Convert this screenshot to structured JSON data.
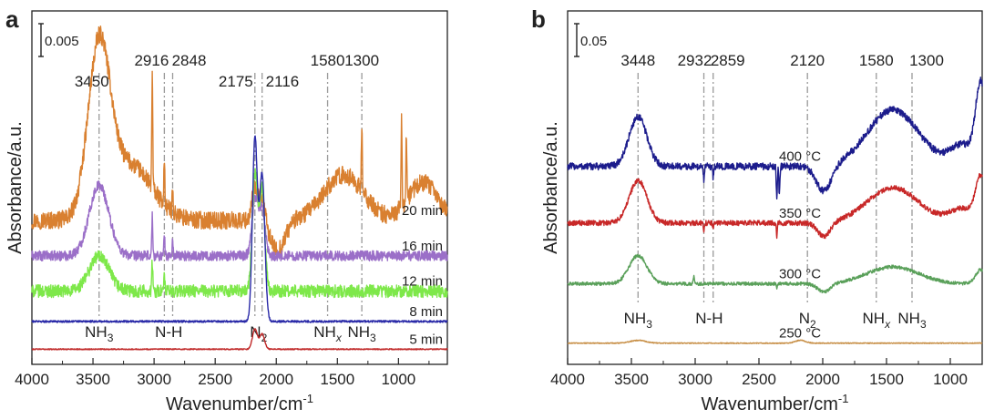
{
  "chart_data": [
    {
      "panel": "a",
      "type": "line",
      "xlabel": "Wavenumber/cm",
      "xlabel_sup": "-1",
      "ylabel": "Absorbance/a.u.",
      "xlim": [
        4000,
        600
      ],
      "xticks": [
        4000,
        3500,
        3000,
        2500,
        2000,
        1500,
        1000
      ],
      "scale_bar": "0.005",
      "peak_labels": [
        {
          "text": "3450",
          "x": 3450
        },
        {
          "text": "2916",
          "x": 2916
        },
        {
          "text": "2848",
          "x": 2848
        },
        {
          "text": "2175",
          "x": 2175
        },
        {
          "text": "2116",
          "x": 2116
        },
        {
          "text": "1580",
          "x": 1580
        },
        {
          "text": "1300",
          "x": 1300
        }
      ],
      "bottom_labels": [
        {
          "main": "NH",
          "sub": "3",
          "x": 3450
        },
        {
          "main": "N-H",
          "sub": "",
          "x": 2880
        },
        {
          "main": "N",
          "sub": "2",
          "x": 2145
        },
        {
          "main": "NH",
          "sub": "x",
          "x": 1580
        },
        {
          "main": "NH",
          "sub": "3",
          "x": 1300
        }
      ],
      "series": [
        {
          "name": "20 min",
          "color": "#d98030",
          "baseline": 0.0052,
          "noise": 0.00035,
          "peaks": [
            [
              3450,
              0.0065,
              90
            ],
            [
              3200,
              0.0022,
              180
            ],
            [
              2175,
              0.0012,
              25
            ],
            [
              2116,
              0.0009,
              25
            ],
            [
              1450,
              0.0018,
              160
            ],
            [
              800,
              0.0015,
              120
            ]
          ],
          "spikes": [
            [
              3015,
              0.0045
            ],
            [
              2916,
              0.0018
            ],
            [
              2848,
              0.0012
            ],
            [
              1300,
              0.0025
            ],
            [
              975,
              0.0035
            ],
            [
              935,
              0.0026
            ]
          ],
          "dips": [
            [
              1990,
              0.0012,
              60
            ]
          ]
        },
        {
          "name": "16 min",
          "color": "#9b6fc8",
          "baseline": 0.0038,
          "noise": 0.0002,
          "peaks": [
            [
              3450,
              0.0028,
              80
            ],
            [
              2175,
              0.0022,
              25
            ],
            [
              2116,
              0.0018,
              25
            ]
          ],
          "spikes": [
            [
              3015,
              0.0016
            ],
            [
              2916,
              0.0008
            ],
            [
              2848,
              0.0006
            ]
          ],
          "dips": []
        },
        {
          "name": "12 min",
          "color": "#7ee84a",
          "baseline": 0.0024,
          "noise": 0.00025,
          "peaks": [
            [
              3450,
              0.0014,
              80
            ],
            [
              2175,
              0.0045,
              22
            ],
            [
              2116,
              0.004,
              22
            ]
          ],
          "spikes": [
            [
              3015,
              0.0012
            ],
            [
              2916,
              0.0006
            ]
          ],
          "dips": []
        },
        {
          "name": "8 min",
          "color": "#2a2aa8",
          "baseline": 0.0012,
          "noise": 4e-05,
          "peaks": [
            [
              2175,
              0.0072,
              20
            ],
            [
              2116,
              0.0058,
              22
            ]
          ],
          "spikes": [],
          "dips": []
        },
        {
          "name": "5 min",
          "color": "#c02828",
          "baseline": 0.0001,
          "noise": 2e-05,
          "peaks": [
            [
              2175,
              0.0008,
              20
            ],
            [
              2116,
              0.0006,
              20
            ]
          ],
          "spikes": [],
          "dips": []
        }
      ]
    },
    {
      "panel": "b",
      "type": "line",
      "xlabel": "Wavenumber/cm",
      "xlabel_sup": "-1",
      "ylabel": "Absorbance/a.u.",
      "xlim": [
        4000,
        750
      ],
      "xticks": [
        4000,
        3500,
        3000,
        2500,
        2000,
        1500,
        1000
      ],
      "scale_bar": "0.05",
      "peak_labels": [
        {
          "text": "3448",
          "x": 3448
        },
        {
          "text": "2932",
          "x": 2932
        },
        {
          "text": "2859",
          "x": 2859
        },
        {
          "text": "2120",
          "x": 2120
        },
        {
          "text": "1580",
          "x": 1580
        },
        {
          "text": "1300",
          "x": 1300
        }
      ],
      "bottom_labels": [
        {
          "main": "NH",
          "sub": "3",
          "x": 3448
        },
        {
          "main": "N-H",
          "sub": "",
          "x": 2890
        },
        {
          "main": "N",
          "sub": "2",
          "x": 2120
        },
        {
          "main": "NH",
          "sub": "x",
          "x": 1580
        },
        {
          "main": "NH",
          "sub": "3",
          "x": 1300
        }
      ],
      "series": [
        {
          "name": "400 °C",
          "color": "#1c1c8c",
          "baseline": 0.135,
          "noise": 0.0025,
          "peaks": [
            [
              3448,
              0.035,
              70
            ],
            [
              1450,
              0.04,
              200
            ],
            [
              900,
              0.015,
              100
            ],
            [
              760,
              0.055,
              40
            ]
          ],
          "spikes": [
            [
              2932,
              -0.01
            ],
            [
              2859,
              -0.008
            ],
            [
              2360,
              -0.025
            ],
            [
              2340,
              -0.02
            ]
          ],
          "dips": [
            [
              1990,
              0.018,
              60
            ]
          ]
        },
        {
          "name": "350 °C",
          "color": "#c82828",
          "baseline": 0.095,
          "noise": 0.0018,
          "peaks": [
            [
              3448,
              0.03,
              70
            ],
            [
              1450,
              0.025,
              200
            ],
            [
              900,
              0.01,
              100
            ],
            [
              760,
              0.03,
              40
            ]
          ],
          "spikes": [
            [
              2932,
              -0.006
            ],
            [
              2859,
              -0.004
            ],
            [
              2360,
              -0.01
            ]
          ],
          "dips": [
            [
              1990,
              0.01,
              50
            ]
          ]
        },
        {
          "name": "300 °C",
          "color": "#5aa05a",
          "baseline": 0.052,
          "noise": 0.0012,
          "peaks": [
            [
              3448,
              0.02,
              70
            ],
            [
              1450,
              0.012,
              200
            ],
            [
              760,
              0.01,
              40
            ]
          ],
          "spikes": [
            [
              3010,
              0.006
            ],
            [
              2360,
              -0.004
            ]
          ],
          "dips": [
            [
              1990,
              0.006,
              50
            ]
          ]
        },
        {
          "name": "250 °C",
          "color": "#c89048",
          "baseline": 0.01,
          "noise": 0.0003,
          "peaks": [
            [
              3448,
              0.002,
              60
            ],
            [
              2175,
              0.002,
              40
            ]
          ],
          "spikes": [],
          "dips": []
        }
      ]
    }
  ]
}
